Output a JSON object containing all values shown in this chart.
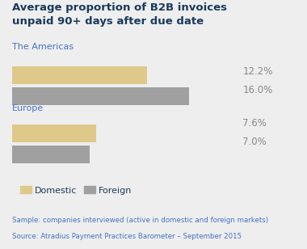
{
  "title": "Average proportion of B2B invoices\nunpaid 90+ days after due date",
  "title_color": "#1a3a5c",
  "background_color": "#eeeeee",
  "groups": [
    "The Americas",
    "Europe"
  ],
  "values": [
    [
      12.2,
      16.0
    ],
    [
      7.6,
      7.0
    ]
  ],
  "bar_colors": [
    "#dfc98a",
    "#a0a0a0"
  ],
  "label_color": "#1a3a5c",
  "value_color": "#888888",
  "max_value": 20,
  "footnote_line1": "Sample: companies interviewed (active in domestic and foreign markets)",
  "footnote_line2": "Source: Atradius Payment Practices Barometer – September 2015",
  "footnote_color": "#4472c4",
  "group_label_color": "#4472c4",
  "value_labels": [
    "12.2%",
    "16.0%",
    "7.6%",
    "7.0%"
  ],
  "legend_labels": [
    "Domestic",
    "Foreign"
  ],
  "title_fontsize": 9.5,
  "group_fontsize": 8,
  "value_fontsize": 8.5,
  "legend_fontsize": 8,
  "footnote_fontsize": 6.2
}
